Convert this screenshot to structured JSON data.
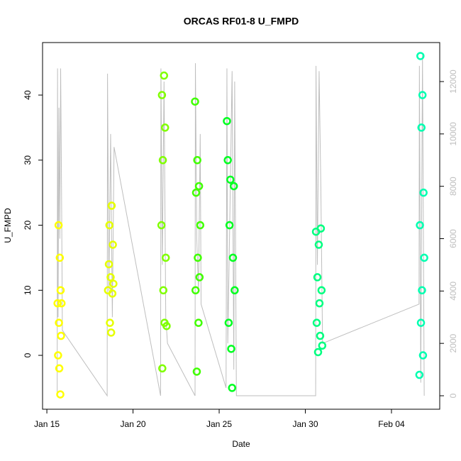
{
  "chart_data": {
    "type": "scatter",
    "title": "ORCAS RF01-8 U_FMPD",
    "x_label": "Date",
    "y_label": "U_FMPD",
    "xlim": [
      14.75,
      37.8
    ],
    "xticks": [
      {
        "value": 15,
        "label": "Jan 15"
      },
      {
        "value": 20,
        "label": "Jan 20"
      },
      {
        "value": 25,
        "label": "Jan 25"
      },
      {
        "value": 30,
        "label": "Jan 30"
      },
      {
        "value": 35,
        "label": "Feb 04"
      }
    ],
    "ylim": [
      -8.28,
      48.07
    ],
    "yticks": [
      0,
      10,
      20,
      30,
      40
    ],
    "y2lim": [
      -515,
      13490
    ],
    "y2ticks": [
      0,
      2000,
      4000,
      6000,
      8000,
      10000,
      12000
    ],
    "series": [
      {
        "color": "#bebebe",
        "axis": "y2",
        "x": [
          15.6,
          15.62,
          15.65,
          15.7,
          15.75,
          15.8,
          15.85,
          15.9,
          18.5,
          18.52,
          18.6,
          18.7,
          18.8,
          18.9,
          21.6,
          21.62,
          21.7,
          21.8,
          21.9,
          22.0,
          23.6,
          23.62,
          23.7,
          23.8,
          23.9,
          23.95,
          25.4,
          25.45,
          25.5,
          25.6,
          25.75,
          25.85,
          25.9,
          26.0,
          30.6,
          30.62,
          30.7,
          30.8,
          30.9,
          31.0,
          36.6,
          36.62,
          36.7,
          36.8,
          36.9
        ],
        "values": [
          0,
          12500,
          3000,
          11000,
          6000,
          12500,
          8000,
          2500,
          0,
          12300,
          4000,
          10000,
          3000,
          9500,
          0,
          12500,
          5000,
          12000,
          3000,
          2000,
          0,
          12700,
          6000,
          4000,
          10000,
          3500,
          300,
          12500,
          2000,
          6000,
          12400,
          1000,
          12000,
          0,
          0,
          12600,
          5000,
          12400,
          8000,
          2000,
          3500,
          12600,
          500,
          13000,
          0
        ]
      },
      {
        "color": "#ffff00",
        "x": [
          15.62,
          15.65,
          15.68,
          15.7,
          15.72,
          15.75,
          15.78,
          15.8,
          15.82,
          15.85
        ],
        "values": [
          8,
          0,
          20,
          5,
          -2,
          15,
          -6,
          10,
          3,
          8
        ]
      },
      {
        "color": "#e6ff00",
        "x": [
          18.55,
          18.6,
          18.63,
          18.66,
          18.7,
          18.73,
          18.76,
          18.8,
          18.83,
          18.86
        ],
        "values": [
          10,
          14,
          20,
          5,
          12,
          3.5,
          23,
          9.5,
          17,
          11
        ]
      },
      {
        "color": "#80ff00",
        "x": [
          21.65,
          21.68,
          21.7,
          21.73,
          21.76,
          21.8,
          21.83,
          21.86,
          21.9,
          21.95
        ],
        "values": [
          20,
          40,
          -2,
          30,
          10,
          43,
          5,
          35,
          15,
          4.5
        ]
      },
      {
        "color": "#40ff00",
        "x": [
          23.6,
          23.63,
          23.66,
          23.7,
          23.73,
          23.76,
          23.8,
          23.83,
          23.86,
          23.9
        ],
        "values": [
          39,
          10,
          25,
          -2.5,
          30,
          15,
          5,
          26,
          12,
          20
        ]
      },
      {
        "color": "#00ff20",
        "x": [
          25.45,
          25.5,
          25.55,
          25.6,
          25.65,
          25.7,
          25.75,
          25.8,
          25.85,
          25.9
        ],
        "values": [
          36,
          30,
          5,
          20,
          27,
          1,
          -5,
          15,
          26,
          10
        ]
      },
      {
        "color": "#00ff80",
        "x": [
          30.62,
          30.66,
          30.7,
          30.74,
          30.78,
          30.82,
          30.86,
          30.9,
          30.94,
          30.98
        ],
        "values": [
          19,
          5,
          12,
          0.5,
          17,
          8,
          3,
          19.5,
          10,
          1.5
        ]
      },
      {
        "color": "#00ffb0",
        "x": [
          36.62,
          36.65,
          36.68,
          36.71,
          36.74,
          36.77,
          36.8,
          36.83,
          36.86,
          36.9
        ],
        "values": [
          -3,
          20,
          46,
          5,
          35,
          10,
          40,
          0,
          25,
          15
        ]
      }
    ]
  }
}
